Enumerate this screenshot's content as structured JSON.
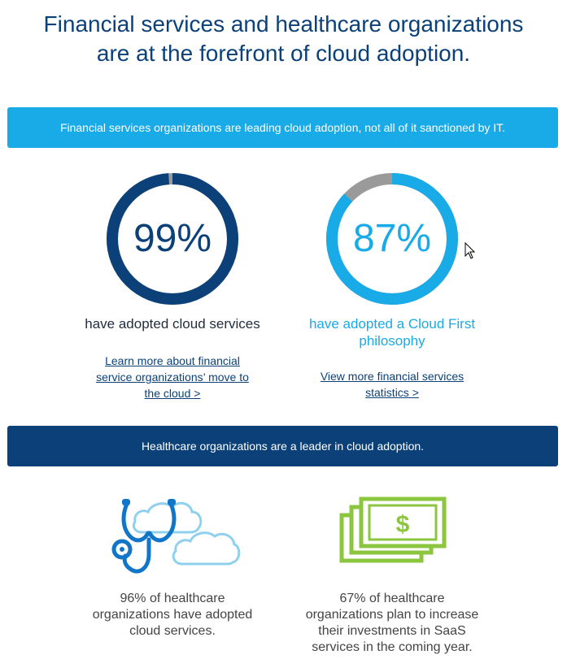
{
  "header": {
    "title_line1": "Financial services and healthcare organizations",
    "title_line2": "are at the forefront of cloud adoption."
  },
  "financial": {
    "banner": "Financial services organizations are leading cloud adoption, not all of it sanctioned by IT.",
    "stats": [
      {
        "percent_label": "99%",
        "percent_value": 99,
        "caption": "have adopted cloud services",
        "link_line1": "Learn more about financial",
        "link_line2": "service organizations’ move to",
        "link_line3": "the cloud >"
      },
      {
        "percent_label": "87%",
        "percent_value": 87,
        "caption_line1": "have adopted a Cloud First",
        "caption_line2": "philosophy",
        "link_line1": "View more financial services",
        "link_line2": "statistics >"
      }
    ]
  },
  "healthcare": {
    "banner": "Healthcare organizations are a leader in cloud adoption.",
    "items": [
      {
        "icon": "stethoscope-cloud-icon",
        "text_line1": "96% of healthcare",
        "text_line2": "organizations have adopted",
        "text_line3": "cloud services."
      },
      {
        "icon": "money-stack-icon",
        "text_line1": "67% of healthcare",
        "text_line2": "organizations plan to increase",
        "text_line3": "their investments in SaaS",
        "text_line4": "services in the coming year."
      }
    ]
  },
  "colors": {
    "navy": "#0b4178",
    "light_blue": "#19aae8",
    "gray_track": "#9a9a9a",
    "green": "#8cc63f",
    "cloud_outline": "#8fd0ee"
  }
}
